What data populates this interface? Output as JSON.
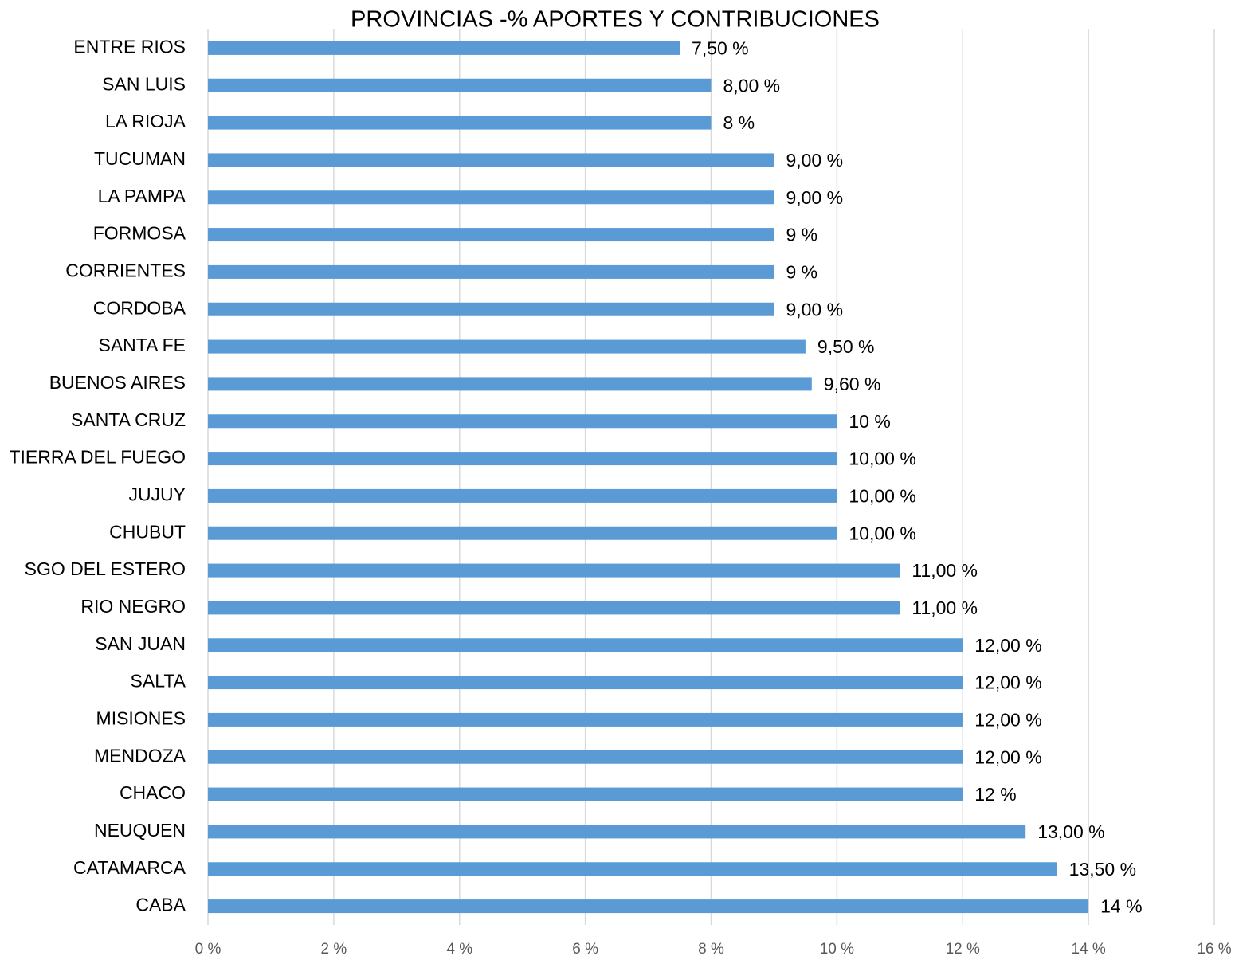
{
  "chart_data": {
    "type": "bar",
    "orientation": "horizontal",
    "title": "PROVINCIAS -% APORTES Y CONTRIBUCIONES",
    "categories": [
      "ENTRE RIOS",
      "SAN LUIS",
      "LA RIOJA",
      "TUCUMAN",
      "LA PAMPA",
      "FORMOSA",
      "CORRIENTES",
      "CORDOBA",
      "SANTA FE",
      "BUENOS AIRES",
      "SANTA CRUZ",
      "TIERRA DEL FUEGO",
      "JUJUY",
      "CHUBUT",
      "SGO DEL ESTERO",
      "RIO NEGRO",
      "SAN JUAN",
      "SALTA",
      "MISIONES",
      "MENDOZA",
      "CHACO",
      "NEUQUEN",
      "CATAMARCA",
      "CABA"
    ],
    "values": [
      7.5,
      8,
      8,
      9,
      9,
      9,
      9,
      9,
      9.5,
      9.6,
      10,
      10,
      10,
      10,
      11,
      11,
      12,
      12,
      12,
      12,
      12,
      13,
      13.5,
      14
    ],
    "value_labels": [
      "7,50 %",
      "8,00 %",
      "8 %",
      "9,00 %",
      "9,00 %",
      "9 %",
      "9 %",
      "9,00 %",
      "9,50 %",
      "9,60 %",
      "10 %",
      "10,00 %",
      "10,00 %",
      "10,00 %",
      "11,00 %",
      "11,00 %",
      "12,00 %",
      "12,00 %",
      "12,00 %",
      "12,00 %",
      "12 %",
      "13,00 %",
      "13,50 %",
      "14 %"
    ],
    "color": "#5b9bd5",
    "xlim": [
      0,
      16
    ],
    "xticks": [
      {
        "value": 0,
        "label": "0 %"
      },
      {
        "value": 2,
        "label": "2 %"
      },
      {
        "value": 4,
        "label": "4 %"
      },
      {
        "value": 6,
        "label": "6 %"
      },
      {
        "value": 8,
        "label": "8 %"
      },
      {
        "value": 10,
        "label": "10 %"
      },
      {
        "value": 12,
        "label": "12 %"
      },
      {
        "value": 14,
        "label": "14 %"
      },
      {
        "value": 16,
        "label": "16 %"
      }
    ],
    "grid": true
  }
}
